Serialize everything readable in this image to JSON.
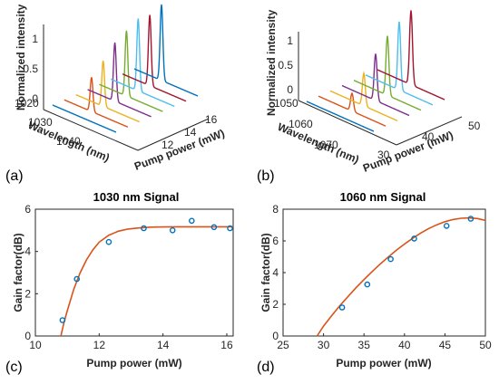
{
  "colors": {
    "waterfall": [
      "#0072bd",
      "#d95319",
      "#edb120",
      "#7e2f8e",
      "#77ac30",
      "#4dbeee",
      "#a2142f"
    ],
    "fit": "#d95319",
    "points": "#0072bd"
  },
  "chart_data": [
    {
      "panel_label": "(a)",
      "type": "line",
      "style": "3d-waterfall",
      "title": "",
      "zlabel": "Normalized intensity",
      "xlabel": "Wavelength (nm)",
      "ylabel": "Pump power (mW)",
      "zticks": [
        "0",
        "0.5",
        "1"
      ],
      "xticks": [
        "1020",
        "1030",
        "1040"
      ],
      "yticks": [
        "12",
        "14",
        "16"
      ],
      "wavelength_range": [
        1018,
        1046
      ],
      "peak_wavelength": 1030,
      "peak_width_nm": 0.6,
      "series": [
        {
          "pump_power": 10.8,
          "peak": 0.0
        },
        {
          "pump_power": 11.3,
          "peak": 0.45
        },
        {
          "pump_power": 12.3,
          "peak": 0.6
        },
        {
          "pump_power": 13.4,
          "peak": 0.77
        },
        {
          "pump_power": 14.3,
          "peak": 0.86
        },
        {
          "pump_power": 14.9,
          "peak": 0.95
        },
        {
          "pump_power": 15.6,
          "peak": 0.93
        },
        {
          "pump_power": 16.1,
          "peak": 1.0
        }
      ]
    },
    {
      "panel_label": "(b)",
      "type": "line",
      "style": "3d-waterfall",
      "title": "",
      "zlabel": "Normalized intensity",
      "xlabel": "Wavelength (nm)",
      "ylabel": "Pump power (mW)",
      "zticks": [
        "0",
        "0.5",
        "1"
      ],
      "xticks": [
        "1050",
        "1060",
        "1070"
      ],
      "yticks": [
        "30",
        "40",
        "50"
      ],
      "wavelength_range": [
        1048,
        1076
      ],
      "peak_wavelength": 1062,
      "peak_width_nm": 0.6,
      "series": [
        {
          "pump_power": 29.5,
          "peak": 0.0
        },
        {
          "pump_power": 32.3,
          "peak": 0.24
        },
        {
          "pump_power": 35.3,
          "peak": 0.44
        },
        {
          "pump_power": 38.3,
          "peak": 0.63
        },
        {
          "pump_power": 41.2,
          "peak": 0.8
        },
        {
          "pump_power": 45.2,
          "peak": 0.92
        },
        {
          "pump_power": 48.2,
          "peak": 1.0
        }
      ]
    },
    {
      "panel_label": "(c)",
      "type": "scatter",
      "title": "1030 nm Signal",
      "xlabel": "Pump power (mW)",
      "ylabel": "Gain factor(dB)",
      "xlim": [
        10,
        16.2
      ],
      "ylim": [
        0,
        6
      ],
      "xticks": [
        10,
        12,
        14,
        16
      ],
      "yticks": [
        0,
        2,
        4,
        6
      ],
      "points": [
        {
          "x": 10.85,
          "y": 0.75
        },
        {
          "x": 11.3,
          "y": 2.7
        },
        {
          "x": 12.3,
          "y": 4.45
        },
        {
          "x": 13.4,
          "y": 5.1
        },
        {
          "x": 14.3,
          "y": 5.0
        },
        {
          "x": 14.9,
          "y": 5.45
        },
        {
          "x": 15.6,
          "y": 5.15
        },
        {
          "x": 16.1,
          "y": 5.1
        }
      ],
      "fit": {
        "x": [
          10.8,
          10.9,
          11.0,
          11.2,
          11.4,
          11.6,
          11.8,
          12.0,
          12.3,
          12.6,
          12.9,
          13.2,
          13.6,
          14.0,
          14.5,
          15.0,
          15.5,
          16.0,
          16.2
        ],
        "y": [
          0.0,
          0.65,
          1.2,
          2.2,
          2.98,
          3.6,
          4.07,
          4.44,
          4.77,
          4.96,
          5.06,
          5.11,
          5.15,
          5.16,
          5.17,
          5.17,
          5.17,
          5.17,
          5.17
        ]
      }
    },
    {
      "panel_label": "(d)",
      "type": "scatter",
      "title": "1060 nm Signal",
      "xlabel": "Pump power (mW)",
      "ylabel": "Gain factor(dB)",
      "xlim": [
        25,
        50
      ],
      "ylim": [
        0,
        8
      ],
      "xticks": [
        25,
        30,
        35,
        40,
        45,
        50
      ],
      "yticks": [
        0,
        2,
        4,
        6,
        8
      ],
      "points": [
        {
          "x": 32.3,
          "y": 1.8
        },
        {
          "x": 35.4,
          "y": 3.25
        },
        {
          "x": 38.3,
          "y": 4.85
        },
        {
          "x": 41.2,
          "y": 6.15
        },
        {
          "x": 45.2,
          "y": 6.95
        },
        {
          "x": 48.2,
          "y": 7.4
        }
      ],
      "fit": {
        "x": [
          29.2,
          30,
          31,
          32,
          33,
          34,
          35,
          36,
          37,
          38,
          39,
          40,
          41,
          42,
          43,
          44,
          45,
          46,
          47,
          48,
          49,
          50
        ],
        "y": [
          0.0,
          0.62,
          1.28,
          1.9,
          2.48,
          3.04,
          3.56,
          4.06,
          4.54,
          4.99,
          5.41,
          5.8,
          6.16,
          6.49,
          6.78,
          7.02,
          7.21,
          7.35,
          7.43,
          7.45,
          7.41,
          7.3
        ]
      }
    }
  ]
}
